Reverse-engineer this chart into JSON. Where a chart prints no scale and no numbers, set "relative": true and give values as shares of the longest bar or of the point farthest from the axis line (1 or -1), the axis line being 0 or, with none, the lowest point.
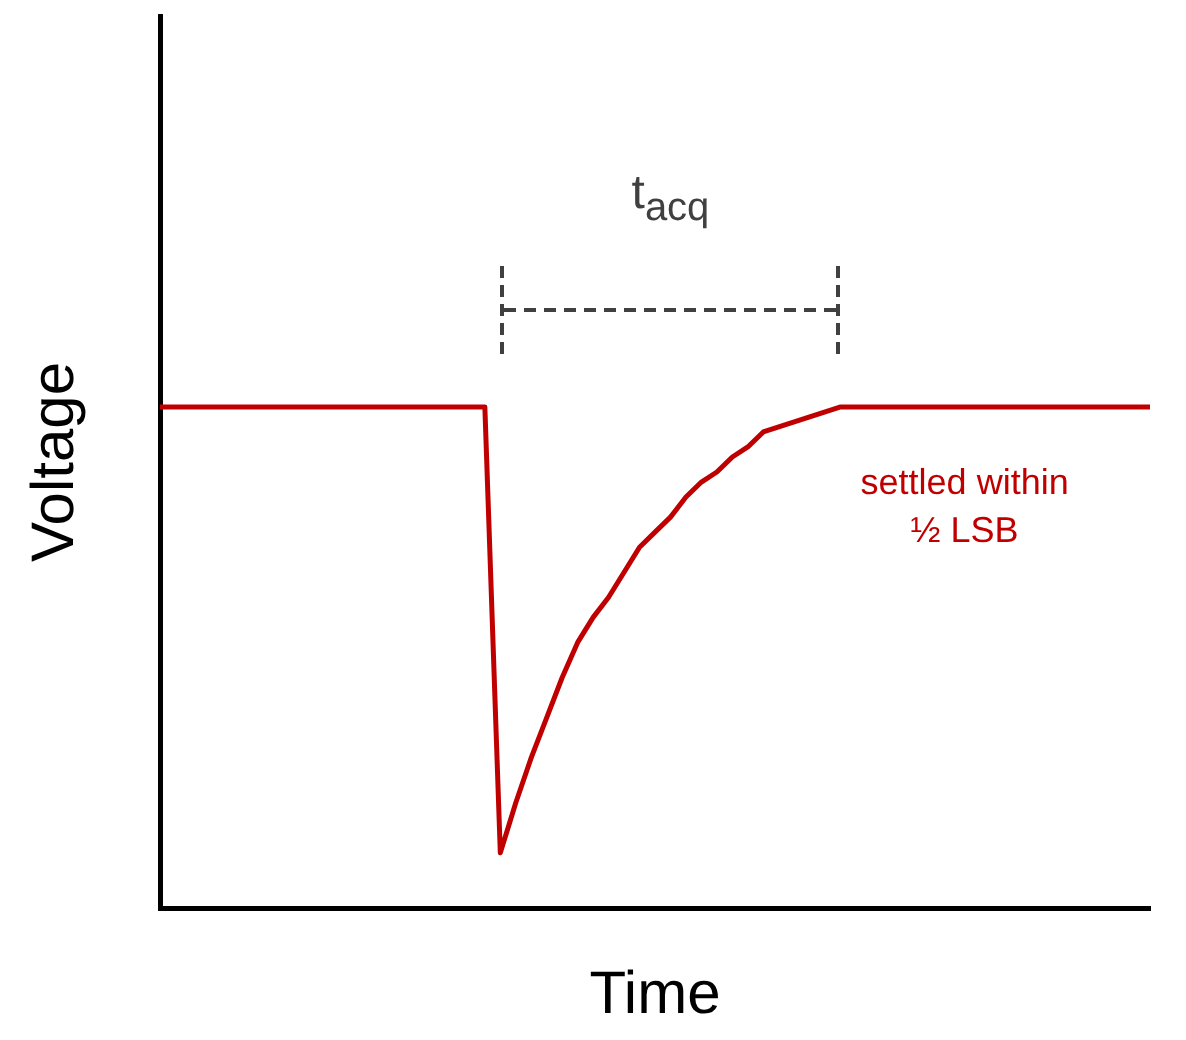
{
  "chart_data": {
    "type": "line",
    "relative": true,
    "xlabel": "Time",
    "ylabel": "Voltage",
    "tick_labels": false,
    "grid": false,
    "legend": false,
    "marker": "none",
    "line_style": "solid",
    "categories": [
      null,
      null,
      null,
      null,
      null,
      null,
      null,
      null,
      null,
      null,
      null,
      null,
      null,
      null,
      null,
      null,
      null,
      null,
      null,
      null,
      null,
      null,
      null,
      null,
      null,
      null,
      null,
      null,
      null,
      null,
      null,
      null,
      null,
      null,
      null,
      null,
      null,
      null,
      null,
      null,
      null,
      null,
      null,
      null,
      null,
      null,
      null,
      null,
      null,
      null,
      null,
      null,
      null,
      null,
      null,
      null,
      null,
      null,
      null,
      null,
      null,
      null,
      null,
      null,
      null
    ],
    "series": [
      {
        "color": "#c00000",
        "values": [
          1,
          1,
          1,
          1,
          1,
          1,
          1,
          1,
          1,
          1,
          1,
          1,
          1,
          1,
          1,
          1,
          1,
          1,
          1,
          1,
          1,
          1,
          0.11,
          0.21,
          0.3,
          0.38,
          0.46,
          0.53,
          0.58,
          0.62,
          0.67,
          0.72,
          0.75,
          0.78,
          0.82,
          0.85,
          0.87,
          0.9,
          0.92,
          0.95,
          0.96,
          0.97,
          0.98,
          0.99,
          1,
          1,
          1,
          1,
          1,
          1,
          1,
          1,
          1,
          1,
          1,
          1,
          1,
          1,
          1,
          1,
          1,
          1,
          1,
          1,
          1
        ]
      }
    ],
    "annotations": [
      "t$_{acq}$",
      "settled within ½ LSB"
    ]
  }
}
